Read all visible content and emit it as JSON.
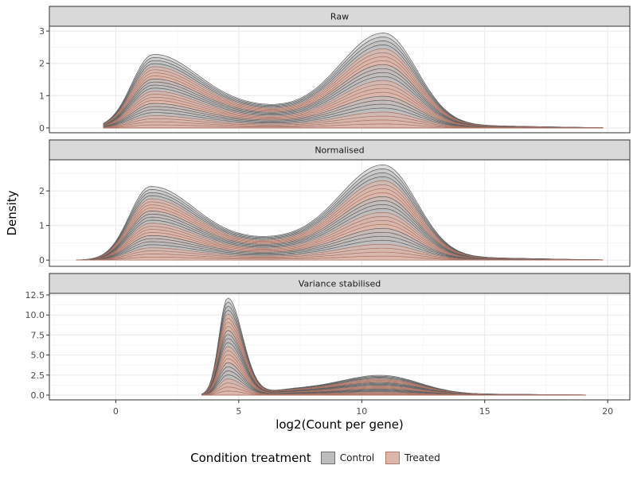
{
  "chart_data": {
    "type": "area",
    "xlabel": "log2(Count per gene)",
    "ylabel": "Density",
    "xlim": [
      -2.7,
      20.9
    ],
    "x_ticks": [
      0,
      5,
      10,
      15,
      20
    ],
    "grid": true,
    "legend": {
      "title": "Condition treatment",
      "placement": "bottom",
      "items": [
        {
          "label": "Control",
          "fill": "#bdbdbd",
          "stroke": "#6e6e6e"
        },
        {
          "label": "Treated",
          "fill": "#ddb6aa",
          "stroke": "#b07a6a"
        }
      ]
    },
    "panels": [
      {
        "strip": "Raw",
        "ylim": [
          -0.15,
          3.15
        ],
        "y_ticks": [
          0,
          1,
          2,
          3
        ],
        "x_range": [
          -0.5,
          19.8
        ],
        "peak1": {
          "x": 1.5,
          "height": 2.22
        },
        "valley": {
          "x": 5.8,
          "height": 0.95
        },
        "peak2": {
          "x": 10.9,
          "height": 2.92
        },
        "samples": 24
      },
      {
        "strip": "Normalised",
        "ylim": [
          -0.18,
          2.9
        ],
        "y_ticks": [
          0,
          1,
          2
        ],
        "x_range": [
          -1.6,
          19.8
        ],
        "peak1": {
          "x": 1.4,
          "height": 2.1
        },
        "valley": {
          "x": 6.2,
          "height": 0.9
        },
        "peak2": {
          "x": 10.9,
          "height": 2.72
        },
        "samples": 24
      },
      {
        "strip": "Variance stabilised",
        "ylim": [
          -0.6,
          12.7
        ],
        "y_ticks": [
          "0.0",
          "2.5",
          "5.0",
          "7.5",
          "10.0",
          "12.5"
        ],
        "x_range": [
          3.5,
          19.1
        ],
        "peak1": {
          "x": 4.55,
          "height": 12.1
        },
        "valley": {
          "x": 7.5,
          "height": 0.8
        },
        "peak2": {
          "x": 10.9,
          "height": 1.85
        },
        "samples": 24
      }
    ]
  }
}
